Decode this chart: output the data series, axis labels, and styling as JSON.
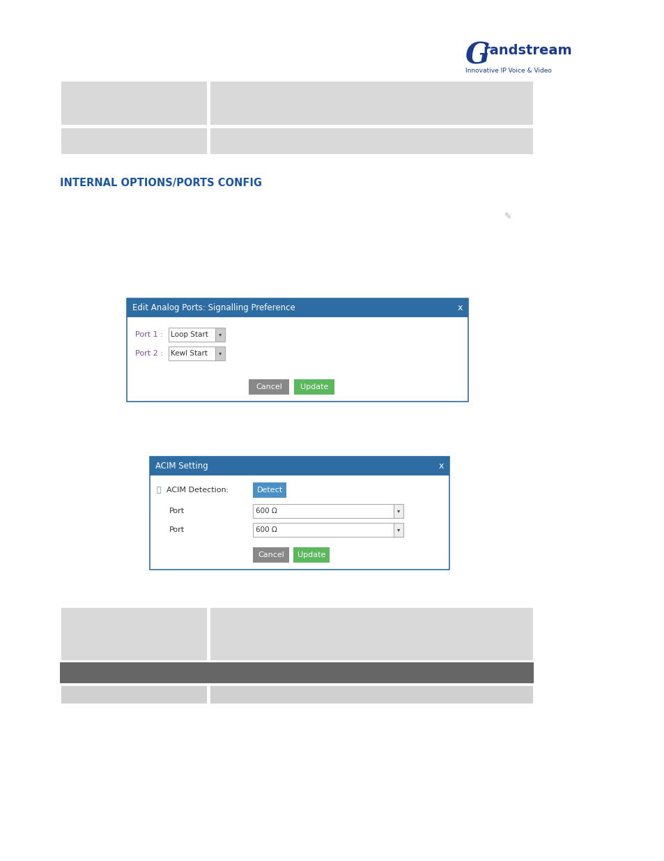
{
  "page_bg": "#ffffff",
  "heading": "INTERNAL OPTIONS/PORTS CONFIG",
  "heading_color": "#1a56a0",
  "heading_fontsize": 10.5,
  "table_row_color": "#d9d9d9",
  "table_row2_color": "#d0d0d0",
  "dialog1_title": "Edit Analog Ports: Signalling Preference",
  "dialog1_title_bg": "#2e6da4",
  "dialog1_title_color": "#ffffff",
  "dialog1_port1_label": "Port 1 :",
  "dialog1_port1_value": "Loop Start",
  "dialog1_port2_label": "Port 2 :",
  "dialog1_port2_value": "Kewl Start",
  "dialog2_title": "ACIM Setting",
  "dialog2_title_bg": "#2e6da4",
  "dialog2_title_color": "#ffffff",
  "dialog2_acim_label": "ACIM Detection:",
  "dialog2_detect_btn": "Detect",
  "dialog2_detect_btn_bg": "#4a90c4",
  "dialog2_port_label": "Port",
  "dialog2_port_value": "600 Ω",
  "cancel_btn_bg": "#888888",
  "update_btn_bg": "#5cb85c",
  "btn_text_color": "#ffffff",
  "cancel_text": "Cancel",
  "update_text": "Update",
  "pencil_color": "#aaaacc",
  "label_color": "#7c4c9e",
  "info_icon_color": "#4a90c4",
  "dropdown_border": "#aaaaaa",
  "dropdown_arrow_bg": "#cccccc",
  "dialog_border": "#2e6da4",
  "dialog_bg": "#ffffff",
  "bottom_header_color": "#666666",
  "logo_g_color": "#1a3a8c",
  "logo_text_color": "#1a3a8c",
  "logo_sub_color": "#1a3a8c"
}
